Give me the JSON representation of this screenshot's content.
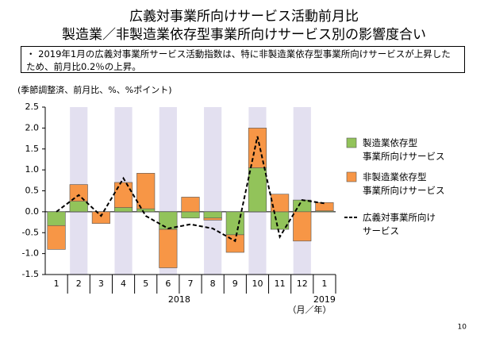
{
  "chart_data": {
    "type": "stacked_bar_line",
    "title": [
      "広義対事業所向けサービス活動前月比",
      "製造業／非製造業依存型事業所向けサービス別の影響度合い"
    ],
    "note": "・ 2019年1月の広義対事業所サービス活動指数は、特に非製造業依存型事業所向けサービスが上昇したため、前月比0.2％の上昇。",
    "subtitle": "(季節調整済、前月比、%、%ポイント)",
    "categories": [
      "1",
      "2",
      "3",
      "4",
      "5",
      "6",
      "7",
      "8",
      "9",
      "10",
      "11",
      "12",
      "1"
    ],
    "year_labels": [
      "2018",
      "2019"
    ],
    "x_unit": "（月／年）",
    "series": [
      {
        "name": "製造業依存型\n事業所向けサービス",
        "color": "#92c35a",
        "values": [
          -0.33,
          0.25,
          0.0,
          0.1,
          0.07,
          -0.42,
          -0.15,
          -0.15,
          -0.55,
          1.05,
          -0.42,
          0.28,
          0.02
        ]
      },
      {
        "name": "非製造業依存型\n事業所向けサービス",
        "color": "#f79646",
        "values": [
          -0.57,
          0.4,
          -0.28,
          0.6,
          0.85,
          -0.92,
          0.35,
          -0.05,
          -0.42,
          0.95,
          0.42,
          -0.7,
          0.2
        ]
      },
      {
        "name": "広義対事業所向け\nサービス",
        "color": "#000000",
        "kind": "line",
        "values": [
          0.0,
          0.4,
          -0.1,
          0.8,
          -0.1,
          -0.4,
          -0.3,
          -0.4,
          -0.7,
          1.8,
          -0.6,
          0.28,
          0.2
        ]
      }
    ],
    "ylim": [
      -1.5,
      2.5
    ],
    "yticks": [
      {
        "value": -1.5,
        "label": "-1.5"
      },
      {
        "value": -1,
        "label": "-1.0"
      },
      {
        "value": -0.5,
        "label": "-0.5"
      },
      {
        "value": 0,
        "label": "0.0"
      },
      {
        "value": 0.5,
        "label": "0.5"
      },
      {
        "value": 1,
        "label": "1.0"
      },
      {
        "value": 1.5,
        "label": "1.5"
      },
      {
        "value": 2,
        "label": "2.0"
      },
      {
        "value": 2.5,
        "label": "2.5"
      }
    ],
    "shaded_band_color": "#e3e0f0"
  },
  "page_number": "10"
}
